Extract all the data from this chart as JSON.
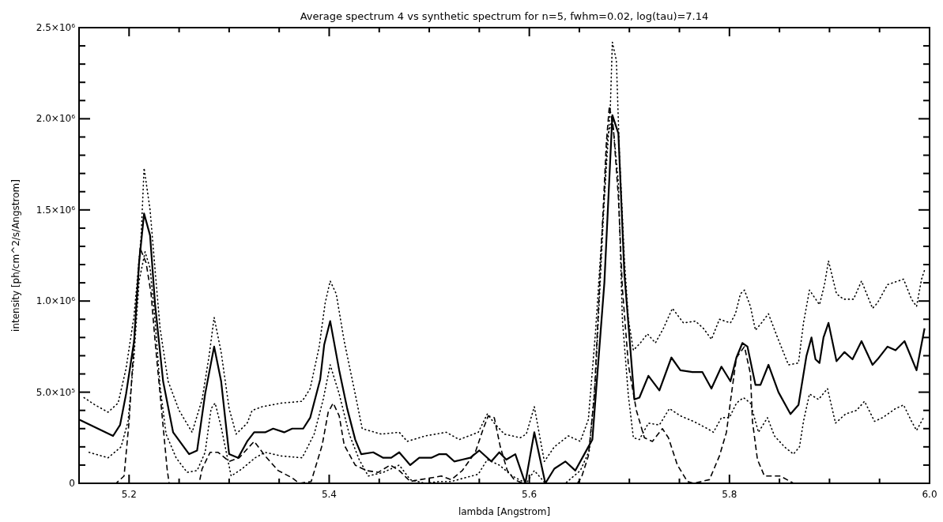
{
  "chart_data": {
    "type": "line",
    "title": "Average spectrum 4 vs synthetic spectrum for n=5, fwhm=0.02, log(tau)=7.14",
    "xlabel": "lambda [Angstrom]",
    "ylabel": "intensity [ph/cm^2/s/Angstrom]",
    "xlim": [
      5.15,
      6.0
    ],
    "xticks": [
      5.2,
      {
        "value": 5.25,
        "label": null
      },
      {
        "value": 5.3,
        "label": null
      },
      {
        "value": 5.35,
        "label": null
      },
      5.4,
      {
        "value": 5.45,
        "label": null
      },
      {
        "value": 5.5,
        "label": null
      },
      {
        "value": 5.55,
        "label": null
      },
      5.6,
      {
        "value": 5.65,
        "label": null
      },
      {
        "value": 5.7,
        "label": null
      },
      {
        "value": 5.75,
        "label": null
      },
      5.8,
      {
        "value": 5.85,
        "label": null
      },
      {
        "value": 5.9,
        "label": null
      },
      {
        "value": 5.95,
        "label": null
      },
      {
        "value": 6.0,
        "label": "6.0"
      }
    ],
    "ylim": [
      0,
      2500000
    ],
    "yticks": [
      0,
      {
        "value": 100000,
        "label": null
      },
      {
        "value": 200000,
        "label": null
      },
      {
        "value": 300000,
        "label": null
      },
      {
        "value": 400000,
        "label": null
      },
      {
        "value": 500000,
        "label": "5.0×10⁵"
      },
      {
        "value": 600000,
        "label": null
      },
      {
        "value": 700000,
        "label": null
      },
      {
        "value": 800000,
        "label": null
      },
      {
        "value": 900000,
        "label": null
      },
      {
        "value": 1000000,
        "label": "1.0×10⁶"
      },
      {
        "value": 1100000,
        "label": null
      },
      {
        "value": 1200000,
        "label": null
      },
      {
        "value": 1300000,
        "label": null
      },
      {
        "value": 1400000,
        "label": null
      },
      {
        "value": 1500000,
        "label": "1.5×10⁶"
      },
      {
        "value": 1600000,
        "label": null
      },
      {
        "value": 1700000,
        "label": null
      },
      {
        "value": 1800000,
        "label": null
      },
      {
        "value": 1900000,
        "label": null
      },
      {
        "value": 2000000,
        "label": "2.0×10⁶"
      },
      {
        "value": 2100000,
        "label": null
      },
      {
        "value": 2200000,
        "label": null
      },
      {
        "value": 2300000,
        "label": null
      },
      {
        "value": 2400000,
        "label": null
      },
      {
        "value": 2500000,
        "label": "2.5×10⁶"
      }
    ],
    "series": [
      {
        "color": "#000000",
        "line_style": "solid",
        "x": [
          5.15,
          5.184,
          5.191,
          5.197,
          5.205,
          5.21,
          5.215,
          5.221,
          5.226,
          5.234,
          5.244,
          5.26,
          5.268,
          5.276,
          5.285,
          5.292,
          5.3,
          5.309,
          5.318,
          5.325,
          5.336,
          5.344,
          5.355,
          5.363,
          5.374,
          5.381,
          5.391,
          5.395,
          5.401,
          5.41,
          5.418,
          5.426,
          5.432,
          5.444,
          5.454,
          5.462,
          5.47,
          5.481,
          5.49,
          5.502,
          5.51,
          5.517,
          5.525,
          5.533,
          5.541,
          5.55,
          5.562,
          5.57,
          5.577,
          5.586,
          5.596,
          5.605,
          5.616,
          5.625,
          5.636,
          5.646,
          5.654,
          5.663,
          5.675,
          5.683,
          5.689,
          5.695,
          5.705,
          5.71,
          5.719,
          5.73,
          5.742,
          5.751,
          5.763,
          5.773,
          5.782,
          5.792,
          5.801,
          5.807,
          5.813,
          5.818,
          5.826,
          5.831,
          5.839,
          5.849,
          5.861,
          5.869,
          5.877,
          5.882,
          5.886,
          5.89,
          5.894,
          5.899,
          5.907,
          5.915,
          5.923,
          5.932,
          5.943,
          5.948,
          5.958,
          5.966,
          5.975,
          5.987,
          5.995
        ],
        "values": [
          350000,
          260000,
          320000,
          490000,
          780000,
          1210000,
          1480000,
          1360000,
          980000,
          560000,
          280000,
          160000,
          180000,
          490000,
          750000,
          560000,
          160000,
          140000,
          230000,
          280000,
          280000,
          300000,
          280000,
          300000,
          300000,
          360000,
          570000,
          760000,
          890000,
          620000,
          410000,
          240000,
          160000,
          170000,
          140000,
          140000,
          170000,
          100000,
          140000,
          140000,
          160000,
          160000,
          120000,
          130000,
          140000,
          180000,
          120000,
          170000,
          130000,
          160000,
          0,
          280000,
          0,
          80000,
          120000,
          70000,
          150000,
          240000,
          1100000,
          2020000,
          1920000,
          1150000,
          460000,
          470000,
          590000,
          510000,
          690000,
          620000,
          610000,
          610000,
          520000,
          640000,
          560000,
          690000,
          770000,
          750000,
          540000,
          540000,
          650000,
          500000,
          380000,
          430000,
          700000,
          800000,
          680000,
          660000,
          800000,
          880000,
          670000,
          720000,
          680000,
          780000,
          650000,
          680000,
          750000,
          730000,
          780000,
          620000,
          850000
        ]
      },
      {
        "color": "#000000",
        "line_style": "dashed",
        "x": [
          5.15,
          5.187,
          5.195,
          5.2,
          5.205,
          5.211,
          5.217,
          5.222,
          5.226,
          5.231,
          5.238,
          5.24,
          5.27,
          5.273,
          5.281,
          5.289,
          5.3,
          5.31,
          5.325,
          5.336,
          5.349,
          5.363,
          5.37,
          5.382,
          5.393,
          5.399,
          5.404,
          5.41,
          5.415,
          5.426,
          5.437,
          5.449,
          5.461,
          5.47,
          5.481,
          5.491,
          5.502,
          5.512,
          5.522,
          5.533,
          5.546,
          5.554,
          5.559,
          5.565,
          5.571,
          5.578,
          5.585,
          5.594,
          5.648,
          5.652,
          5.659,
          5.665,
          5.67,
          5.677,
          5.68,
          5.684,
          5.689,
          5.693,
          5.699,
          5.707,
          5.715,
          5.723,
          5.733,
          5.739,
          5.748,
          5.758,
          5.764,
          5.78,
          5.79,
          5.797,
          5.802,
          5.807,
          5.815,
          5.821,
          5.823,
          5.828,
          5.835,
          5.851,
          5.864,
          5.895
        ],
        "values": [
          0,
          0,
          40000,
          340000,
          780000,
          1290000,
          1210000,
          1040000,
          780000,
          490000,
          80000,
          0,
          0,
          80000,
          170000,
          170000,
          120000,
          140000,
          230000,
          150000,
          70000,
          30000,
          0,
          10000,
          210000,
          390000,
          440000,
          370000,
          210000,
          100000,
          70000,
          60000,
          100000,
          70000,
          10000,
          20000,
          30000,
          40000,
          20000,
          70000,
          170000,
          300000,
          370000,
          360000,
          200000,
          70000,
          20000,
          0,
          0,
          30000,
          150000,
          480000,
          1070000,
          1870000,
          2070000,
          1950000,
          1570000,
          1070000,
          650000,
          400000,
          250000,
          230000,
          300000,
          250000,
          100000,
          10000,
          0,
          20000,
          150000,
          280000,
          490000,
          690000,
          750000,
          600000,
          340000,
          130000,
          40000,
          40000,
          0,
          0
        ]
      },
      {
        "color": "#000000",
        "line_style": "dotted",
        "x": [
          5.155,
          5.166,
          5.179,
          5.189,
          5.197,
          5.205,
          5.212,
          5.215,
          5.221,
          5.226,
          5.231,
          5.239,
          5.25,
          5.263,
          5.273,
          5.28,
          5.285,
          5.292,
          5.3,
          5.307,
          5.318,
          5.323,
          5.333,
          5.352,
          5.373,
          5.381,
          5.39,
          5.396,
          5.401,
          5.407,
          5.415,
          5.426,
          5.433,
          5.452,
          5.47,
          5.478,
          5.496,
          5.517,
          5.53,
          5.549,
          5.558,
          5.565,
          5.575,
          5.591,
          5.597,
          5.605,
          5.615,
          5.625,
          5.639,
          5.651,
          5.659,
          5.666,
          5.675,
          5.681,
          5.683,
          5.687,
          5.69,
          5.695,
          5.699,
          5.704,
          5.711,
          5.718,
          5.726,
          5.734,
          5.743,
          5.754,
          5.766,
          5.774,
          5.782,
          5.79,
          5.801,
          5.806,
          5.811,
          5.815,
          5.821,
          5.826,
          5.832,
          5.839,
          5.848,
          5.859,
          5.869,
          5.874,
          5.88,
          5.89,
          5.895,
          5.899,
          5.907,
          5.914,
          5.924,
          5.932,
          5.943,
          5.948,
          5.958,
          5.974,
          5.982,
          5.987,
          5.992,
          5.995
        ],
        "values": [
          470000,
          430000,
          390000,
          440000,
          630000,
          920000,
          1350000,
          1730000,
          1500000,
          1170000,
          850000,
          560000,
          400000,
          280000,
          460000,
          700000,
          910000,
          720000,
          410000,
          270000,
          330000,
          400000,
          420000,
          440000,
          450000,
          520000,
          750000,
          990000,
          1110000,
          1040000,
          780000,
          490000,
          300000,
          270000,
          280000,
          230000,
          260000,
          280000,
          240000,
          280000,
          380000,
          330000,
          270000,
          250000,
          270000,
          420000,
          120000,
          200000,
          260000,
          230000,
          350000,
          820000,
          1570000,
          2070000,
          2420000,
          2320000,
          1820000,
          1230000,
          900000,
          730000,
          770000,
          820000,
          770000,
          850000,
          960000,
          880000,
          890000,
          850000,
          790000,
          900000,
          880000,
          930000,
          1040000,
          1060000,
          970000,
          840000,
          880000,
          930000,
          800000,
          650000,
          660000,
          880000,
          1060000,
          980000,
          1090000,
          1220000,
          1040000,
          1010000,
          1010000,
          1110000,
          960000,
          990000,
          1090000,
          1120000,
          1010000,
          970000,
          1120000,
          1170000
        ]
      },
      {
        "color": "#000000",
        "line_style": "dotted",
        "x": [
          5.16,
          5.179,
          5.192,
          5.199,
          5.205,
          5.21,
          5.216,
          5.221,
          5.226,
          5.231,
          5.237,
          5.247,
          5.258,
          5.268,
          5.276,
          5.282,
          5.286,
          5.292,
          5.302,
          5.313,
          5.326,
          5.336,
          5.352,
          5.373,
          5.385,
          5.394,
          5.401,
          5.41,
          5.42,
          5.43,
          5.439,
          5.454,
          5.47,
          5.481,
          5.496,
          5.51,
          5.522,
          5.549,
          5.558,
          5.57,
          5.583,
          5.597,
          5.605,
          5.616,
          5.636,
          5.651,
          5.66,
          5.666,
          5.672,
          5.678,
          5.683,
          5.689,
          5.693,
          5.699,
          5.704,
          5.71,
          5.719,
          5.73,
          5.74,
          5.751,
          5.764,
          5.778,
          5.784,
          5.792,
          5.8,
          5.807,
          5.814,
          5.821,
          5.829,
          5.838,
          5.845,
          5.855,
          5.864,
          5.87,
          5.874,
          5.88,
          5.889,
          5.898,
          5.906,
          5.916,
          5.927,
          5.935,
          5.945,
          5.953,
          5.966,
          5.974,
          5.982,
          5.987,
          5.994
        ],
        "values": [
          170000,
          140000,
          200000,
          340000,
          700000,
          1110000,
          1270000,
          1180000,
          890000,
          530000,
          270000,
          140000,
          60000,
          70000,
          170000,
          410000,
          440000,
          310000,
          40000,
          80000,
          140000,
          170000,
          150000,
          140000,
          270000,
          460000,
          650000,
          490000,
          270000,
          130000,
          40000,
          60000,
          100000,
          20000,
          0,
          10000,
          10000,
          50000,
          130000,
          100000,
          40000,
          0,
          70000,
          0,
          0,
          70000,
          180000,
          570000,
          1230000,
          1900000,
          2000000,
          1650000,
          900000,
          480000,
          250000,
          240000,
          330000,
          320000,
          410000,
          370000,
          340000,
          300000,
          280000,
          360000,
          360000,
          440000,
          470000,
          440000,
          280000,
          360000,
          260000,
          200000,
          160000,
          200000,
          340000,
          490000,
          460000,
          520000,
          330000,
          380000,
          400000,
          450000,
          340000,
          360000,
          410000,
          430000,
          340000,
          290000,
          360000
        ]
      }
    ]
  }
}
